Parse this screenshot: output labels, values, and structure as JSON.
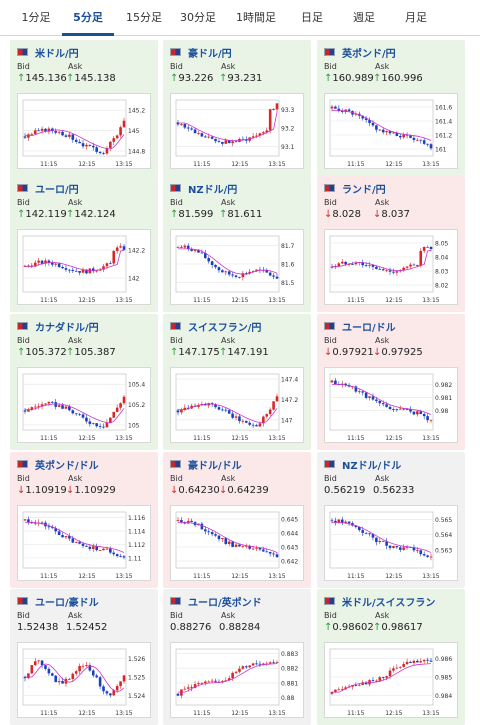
{
  "tabs": [
    "1分足",
    "5分足",
    "15分足",
    "30分足",
    "1時間足",
    "日足",
    "週足",
    "月足"
  ],
  "active_tab": 1,
  "labels": {
    "bid": "Bid",
    "ask": "Ask"
  },
  "times": [
    "11:15",
    "12:15",
    "13:15"
  ],
  "colors": {
    "up_card": "#e9f3e6",
    "down_card": "#fbe9ea",
    "neutral_card": "#f1f1f1",
    "pair_text": "#1b4f9c",
    "up_arrow": "#2f9c3a",
    "down_arrow": "#d12c2c",
    "candle_up": "#d62828",
    "candle_down": "#1a3fbf",
    "ma_line": "#cc33cc"
  },
  "cards": [
    {
      "pair": "米ドル/円",
      "flag": "us-flag",
      "dir": "up",
      "bid": "145.136",
      "ask": "145.138",
      "yticks": [
        "145.2",
        "145",
        "144.8"
      ],
      "ylim": [
        144.75,
        145.3
      ],
      "trend": "rise_spike"
    },
    {
      "pair": "豪ドル/円",
      "flag": "au-flag",
      "dir": "up",
      "bid": "93.226",
      "ask": "93.231",
      "yticks": [
        "93.3",
        "93.2",
        "93.1"
      ],
      "ylim": [
        93.05,
        93.35
      ],
      "trend": "dip_recover"
    },
    {
      "pair": "英ポンド/円",
      "flag": "gb-flag",
      "dir": "up",
      "bid": "160.989",
      "ask": "160.996",
      "yticks": [
        "161.6",
        "161.4",
        "161.2",
        "161"
      ],
      "ylim": [
        160.9,
        161.7
      ],
      "trend": "fall"
    },
    {
      "pair": "ユーロ/円",
      "flag": "eu-flag",
      "dir": "up",
      "bid": "142.119",
      "ask": "142.124",
      "yticks": [
        "142.2",
        "142"
      ],
      "ylim": [
        141.9,
        142.3
      ],
      "trend": "flat_spike"
    },
    {
      "pair": "NZドル/円",
      "flag": "nz-flag",
      "dir": "up",
      "bid": "81.599",
      "ask": "81.611",
      "yticks": [
        "81.7",
        "81.6",
        "81.5"
      ],
      "ylim": [
        81.45,
        81.75
      ],
      "trend": "fall_flat"
    },
    {
      "pair": "ランド/円",
      "flag": "za-flag",
      "dir": "down",
      "bid": "8.028",
      "ask": "8.037",
      "yticks": [
        "8.05",
        "8.04",
        "8.03",
        "8.02"
      ],
      "ylim": [
        8.015,
        8.055
      ],
      "trend": "flat_spike"
    },
    {
      "pair": "カナダドル/円",
      "flag": "ca-flag",
      "dir": "up",
      "bid": "105.372",
      "ask": "105.387",
      "yticks": [
        "105.4",
        "105.2",
        "105"
      ],
      "ylim": [
        104.95,
        105.5
      ],
      "trend": "rise_spike"
    },
    {
      "pair": "スイスフラン/円",
      "flag": "ch-flag",
      "dir": "up",
      "bid": "147.175",
      "ask": "147.191",
      "yticks": [
        "147.4",
        "147.2",
        "147"
      ],
      "ylim": [
        146.9,
        147.45
      ],
      "trend": "rise_spike"
    },
    {
      "pair": "ユーロ/ドル",
      "flag": "eu-us-flag",
      "dir": "down",
      "bid": "0.97921",
      "ask": "0.97925",
      "yticks": [
        "0.982",
        "0.981",
        "0.98"
      ],
      "ylim": [
        0.9785,
        0.9828
      ],
      "trend": "fall"
    },
    {
      "pair": "英ポンド/ドル",
      "flag": "gb-us-flag",
      "dir": "down",
      "bid": "1.10919",
      "ask": "1.10929",
      "yticks": [
        "1.116",
        "1.114",
        "1.112",
        "1.11"
      ],
      "ylim": [
        1.1085,
        1.1168
      ],
      "trend": "fall"
    },
    {
      "pair": "豪ドル/ドル",
      "flag": "au-us-flag",
      "dir": "down",
      "bid": "0.64230",
      "ask": "0.64239",
      "yticks": [
        "0.645",
        "0.644",
        "0.643",
        "0.642"
      ],
      "ylim": [
        0.6415,
        0.6455
      ],
      "trend": "fall"
    },
    {
      "pair": "NZドル/ドル",
      "flag": "nz-us-flag",
      "dir": "neutral",
      "bid": "0.56219",
      "ask": "0.56233",
      "yticks": [
        "0.565",
        "0.564",
        "0.563"
      ],
      "ylim": [
        0.5618,
        0.5655
      ],
      "trend": "fall"
    },
    {
      "pair": "ユーロ/豪ドル",
      "flag": "eu-au-flag",
      "dir": "neutral",
      "bid": "1.52438",
      "ask": "1.52452",
      "yticks": [
        "1.526",
        "1.525",
        "1.524"
      ],
      "ylim": [
        1.5235,
        1.5265
      ],
      "trend": "noisy"
    },
    {
      "pair": "ユーロ/英ポンド",
      "flag": "eu-gb-flag",
      "dir": "neutral",
      "bid": "0.88276",
      "ask": "0.88284",
      "yticks": [
        "0.883",
        "0.882",
        "0.881",
        "0.88"
      ],
      "ylim": [
        0.8795,
        0.8833
      ],
      "trend": "rise"
    },
    {
      "pair": "米ドル/スイスフラン",
      "flag": "us-ch-flag",
      "dir": "up",
      "bid": "0.98602",
      "ask": "0.98617",
      "yticks": [
        "0.986",
        "0.985",
        "0.984"
      ],
      "ylim": [
        0.9835,
        0.9865
      ],
      "trend": "rise"
    }
  ]
}
